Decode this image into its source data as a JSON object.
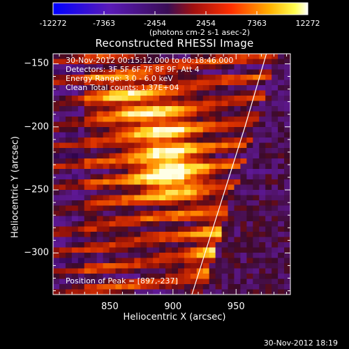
{
  "chart_data": {
    "type": "heatmap",
    "title": "Reconstructed RHESSI Image",
    "xlabel": "Heliocentric X (arcsec)",
    "ylabel": "Heliocentric Y (arcsec)",
    "xlim": [
      805,
      993
    ],
    "ylim": [
      -333,
      -142
    ],
    "x_ticks": [
      850,
      900,
      950
    ],
    "y_ticks": [
      -150,
      -200,
      -250,
      -300
    ],
    "colorbar": {
      "colormap": "blue-purple-red-orange-yellow-white",
      "ticks": [
        "-12272",
        "-7363",
        "-2454",
        "2454",
        "7363",
        "12272"
      ],
      "range": [
        -12272,
        12272
      ],
      "unit_text": "(photons cm-2 s-1 asec-2)"
    },
    "annotations": [
      "30-Nov-2012 00:15:12.000 to 00:18:46.000",
      "Detectors: 3F 5F 6F 7F 8F 9F, Att 4",
      "Energy Range: 3.0 - 6.0 keV",
      "Clean     Total counts: 1.37E+04"
    ],
    "peak": {
      "label": "Position of Peak = [897,-237]",
      "x": 897,
      "y": -237
    },
    "limb": [
      [
        915,
        -333
      ],
      [
        957,
        -200
      ],
      [
        974,
        -142
      ]
    ],
    "sources": [
      {
        "x": 897,
        "y": -237,
        "level": 1.0
      },
      {
        "x": 892,
        "y": -200,
        "level": 0.6
      },
      {
        "x": 865,
        "y": -175,
        "level": 0.5
      },
      {
        "x": 952,
        "y": -315,
        "level": 0.6
      },
      {
        "x": 940,
        "y": -290,
        "level": 0.5
      }
    ],
    "footer_date": "30-Nov-2012 18:19"
  }
}
